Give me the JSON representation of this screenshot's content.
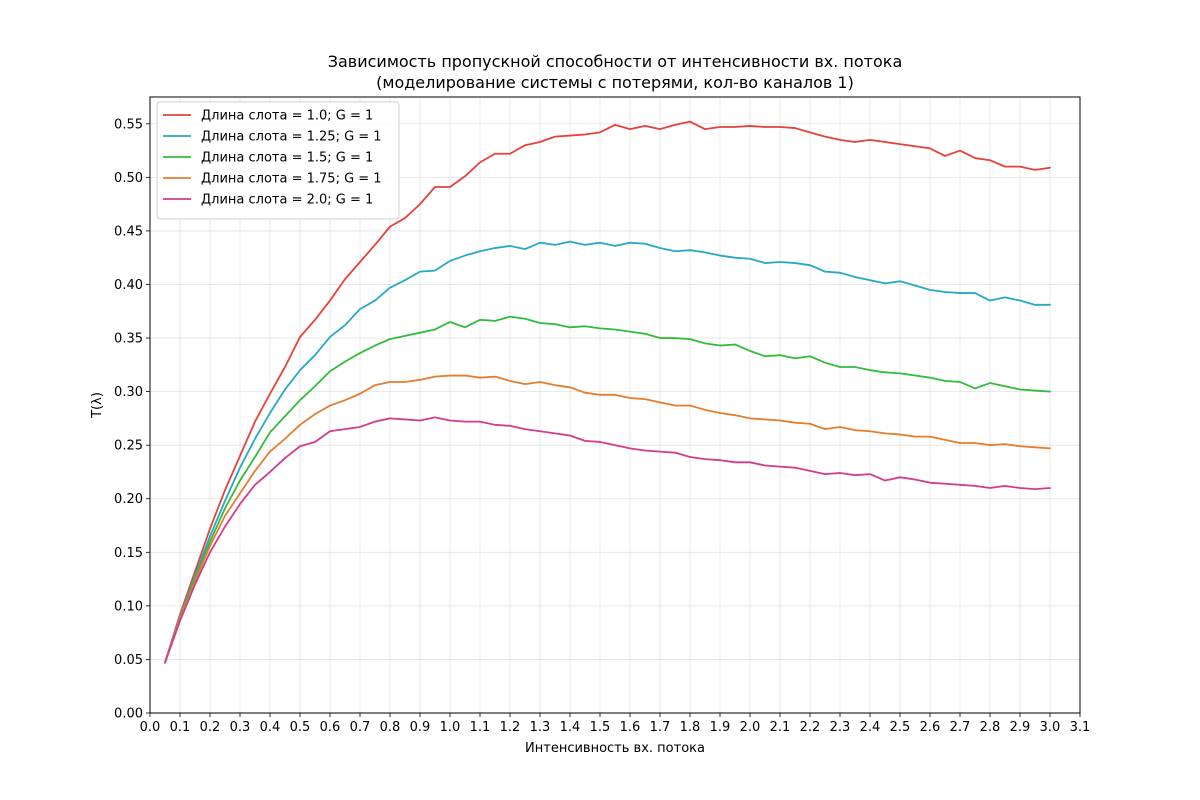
{
  "chart_data": {
    "type": "line",
    "title": "Зависимость пропускной способности от интенсивности вх. потока",
    "subtitle": "(моделирование системы с потерями, кол-во каналов 1)",
    "xlabel": "Интенсивность вх. потока",
    "ylabel": "T(λ)",
    "xlim": [
      0.0,
      3.1
    ],
    "ylim": [
      0.0,
      0.575
    ],
    "xticks": [
      "0.0",
      "0.1",
      "0.2",
      "0.3",
      "0.4",
      "0.5",
      "0.6",
      "0.7",
      "0.8",
      "0.9",
      "1.0",
      "1.1",
      "1.2",
      "1.3",
      "1.4",
      "1.5",
      "1.6",
      "1.7",
      "1.8",
      "1.9",
      "2.0",
      "2.1",
      "2.2",
      "2.3",
      "2.4",
      "2.5",
      "2.6",
      "2.7",
      "2.8",
      "2.9",
      "3.0",
      "3.1"
    ],
    "yticks": [
      "0.00",
      "0.05",
      "0.10",
      "0.15",
      "0.20",
      "0.25",
      "0.30",
      "0.35",
      "0.40",
      "0.45",
      "0.50",
      "0.55"
    ],
    "grid": true,
    "legend_position": "top-left",
    "x": [
      0.05,
      0.1,
      0.15,
      0.2,
      0.25,
      0.3,
      0.35,
      0.4,
      0.45,
      0.5,
      0.55,
      0.6,
      0.65,
      0.7,
      0.75,
      0.8,
      0.85,
      0.9,
      0.95,
      1.0,
      1.05,
      1.1,
      1.15,
      1.2,
      1.25,
      1.3,
      1.35,
      1.4,
      1.45,
      1.5,
      1.55,
      1.6,
      1.65,
      1.7,
      1.75,
      1.8,
      1.85,
      1.9,
      1.95,
      2.0,
      2.05,
      2.1,
      2.15,
      2.2,
      2.25,
      2.3,
      2.35,
      2.4,
      2.45,
      2.5,
      2.55,
      2.6,
      2.65,
      2.7,
      2.75,
      2.8,
      2.85,
      2.9,
      2.95,
      3.0
    ],
    "series": [
      {
        "name": "Длина слота = 1.0; G = 1",
        "color": "#e8403a",
        "values": [
          0.047,
          0.092,
          0.132,
          0.172,
          0.208,
          0.24,
          0.272,
          0.298,
          0.323,
          0.351,
          0.367,
          0.385,
          0.405,
          0.421,
          0.437,
          0.454,
          0.462,
          0.475,
          0.491,
          0.491,
          0.501,
          0.514,
          0.522,
          0.522,
          0.53,
          0.533,
          0.538,
          0.539,
          0.54,
          0.542,
          0.549,
          0.545,
          0.548,
          0.545,
          0.549,
          0.552,
          0.545,
          0.547,
          0.547,
          0.548,
          0.547,
          0.547,
          0.546,
          0.542,
          0.538,
          0.535,
          0.533,
          0.535,
          0.533,
          0.531,
          0.529,
          0.527,
          0.52,
          0.525,
          0.518,
          0.516,
          0.51,
          0.51,
          0.507,
          0.509
        ]
      },
      {
        "name": "Длина слота = 1.25; G = 1",
        "color": "#26a9c6",
        "values": [
          0.047,
          0.09,
          0.128,
          0.165,
          0.198,
          0.229,
          0.256,
          0.28,
          0.302,
          0.32,
          0.334,
          0.351,
          0.362,
          0.377,
          0.385,
          0.397,
          0.404,
          0.412,
          0.413,
          0.422,
          0.427,
          0.431,
          0.434,
          0.436,
          0.433,
          0.439,
          0.437,
          0.44,
          0.437,
          0.439,
          0.436,
          0.439,
          0.438,
          0.434,
          0.431,
          0.432,
          0.43,
          0.427,
          0.425,
          0.424,
          0.42,
          0.421,
          0.42,
          0.418,
          0.412,
          0.411,
          0.407,
          0.404,
          0.401,
          0.403,
          0.399,
          0.395,
          0.393,
          0.392,
          0.392,
          0.385,
          0.388,
          0.385,
          0.381,
          0.381
        ]
      },
      {
        "name": "Длина слота = 1.5; G = 1",
        "color": "#33bb3a",
        "values": [
          0.047,
          0.089,
          0.126,
          0.16,
          0.191,
          0.217,
          0.239,
          0.262,
          0.277,
          0.292,
          0.305,
          0.319,
          0.328,
          0.336,
          0.343,
          0.349,
          0.352,
          0.355,
          0.358,
          0.365,
          0.36,
          0.367,
          0.366,
          0.37,
          0.368,
          0.364,
          0.363,
          0.36,
          0.361,
          0.359,
          0.358,
          0.356,
          0.354,
          0.35,
          0.35,
          0.349,
          0.345,
          0.343,
          0.344,
          0.338,
          0.333,
          0.334,
          0.331,
          0.333,
          0.327,
          0.323,
          0.323,
          0.32,
          0.318,
          0.317,
          0.315,
          0.313,
          0.31,
          0.309,
          0.303,
          0.308,
          0.305,
          0.302,
          0.301,
          0.3
        ]
      },
      {
        "name": "Длина слота = 1.75; G = 1",
        "color": "#e67c2e",
        "values": [
          0.047,
          0.088,
          0.123,
          0.156,
          0.184,
          0.205,
          0.226,
          0.244,
          0.256,
          0.269,
          0.279,
          0.287,
          0.292,
          0.298,
          0.306,
          0.309,
          0.309,
          0.311,
          0.314,
          0.315,
          0.315,
          0.313,
          0.314,
          0.31,
          0.307,
          0.309,
          0.306,
          0.304,
          0.299,
          0.297,
          0.297,
          0.294,
          0.293,
          0.29,
          0.287,
          0.287,
          0.283,
          0.28,
          0.278,
          0.275,
          0.274,
          0.273,
          0.271,
          0.27,
          0.265,
          0.267,
          0.264,
          0.263,
          0.261,
          0.26,
          0.258,
          0.258,
          0.255,
          0.252,
          0.252,
          0.25,
          0.251,
          0.249,
          0.248,
          0.247
        ]
      },
      {
        "name": "Длина слота = 2.0; G = 1",
        "color": "#d63a8a",
        "values": [
          0.047,
          0.086,
          0.12,
          0.15,
          0.174,
          0.195,
          0.213,
          0.225,
          0.238,
          0.249,
          0.253,
          0.263,
          0.265,
          0.267,
          0.272,
          0.275,
          0.274,
          0.273,
          0.276,
          0.273,
          0.272,
          0.272,
          0.269,
          0.268,
          0.265,
          0.263,
          0.261,
          0.259,
          0.254,
          0.253,
          0.25,
          0.247,
          0.245,
          0.244,
          0.243,
          0.239,
          0.237,
          0.236,
          0.234,
          0.234,
          0.231,
          0.23,
          0.229,
          0.226,
          0.223,
          0.224,
          0.222,
          0.223,
          0.217,
          0.22,
          0.218,
          0.215,
          0.214,
          0.213,
          0.212,
          0.21,
          0.212,
          0.21,
          0.209,
          0.21
        ]
      }
    ]
  }
}
